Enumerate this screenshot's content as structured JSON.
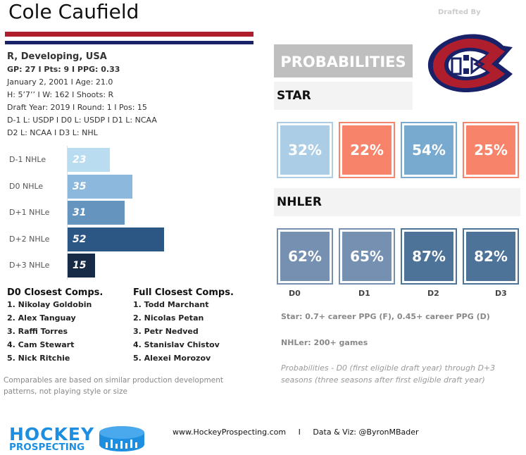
{
  "player": {
    "name": "Cole Caufield",
    "line0": "R, Developing, USA",
    "line1": "GP: 27 I Pts: 9 I PPG: 0.33",
    "line2": " January 2, 2001 I Age: 21.0",
    "line3": "H: 5’7’’ I W: 162 I Shoots: R",
    "line4": "Draft Year: 2019 I Round: 1 I Pos: 15",
    "line5": "D-1 L: USDP I D0 L: USDP I D1 L: NCAA",
    "line6": "D2 L: NCAA I D3 L: NHL"
  },
  "colors": {
    "red": "#af1e2d",
    "navy": "#192168"
  },
  "nhle": [
    {
      "label": "D-1 NHLe",
      "value": 23,
      "color": "#b9dcf0"
    },
    {
      "label": "D0 NHLe",
      "value": 35,
      "color": "#8bb8dc"
    },
    {
      "label": "D+1 NHLe",
      "value": 31,
      "color": "#6595bf"
    },
    {
      "label": "D+2 NHLe",
      "value": 52,
      "color": "#2c5784"
    },
    {
      "label": "D+3 NHLe",
      "value": 15,
      "color": "#172b47"
    }
  ],
  "comps": {
    "d0_title": "D0 Closest Comps.",
    "d0": [
      "1. Nikolay Goldobin",
      "2. Alex Tanguay",
      "3. Raffi Torres",
      "4. Cam Stewart",
      "5. Nick Ritchie"
    ],
    "full_title": "Full Closest Comps.",
    "full": [
      "1. Todd Marchant",
      "2. Nicolas Petan",
      "3. Petr Nedved",
      "4. Stanislav Chistov",
      "5. Alexei Morozov"
    ],
    "note": "Comparables are based on similar production development patterns, not playing style or size"
  },
  "drafted_by": "Drafted By",
  "team_logo": "montreal-canadiens-logo",
  "probabilities": {
    "title": "PROBABILITIES",
    "star_title": "STAR",
    "star": [
      {
        "value": "32%",
        "color": "#abcde6",
        "border": "#abcde6"
      },
      {
        "value": "22%",
        "color": "#f7836b",
        "border": "#f7836b"
      },
      {
        "value": "54%",
        "color": "#78a9cf",
        "border": "#78a9cf"
      },
      {
        "value": "25%",
        "color": "#f7836b",
        "border": "#f7836b"
      }
    ],
    "nhler_title": "NHLER",
    "nhler": [
      {
        "value": "62%",
        "color": "#7590b0"
      },
      {
        "value": "65%",
        "color": "#7590b0"
      },
      {
        "value": "87%",
        "color": "#4d7399"
      },
      {
        "value": "82%",
        "color": "#4d7399"
      }
    ],
    "labels": [
      "D0",
      "D1",
      "D2",
      "D3"
    ],
    "star_def": "Star: 0.7+ career PPG (F), 0.45+ career PPG (D)",
    "nhler_def": "NHLer: 200+ games",
    "note": "Probabilities - D0 (first eligible draft year) through D+3 seasons (three seasons after first eligible draft year)"
  },
  "footer": {
    "logo_top": "HOCKEY",
    "logo_bottom": "PROSPECTING",
    "site": "www.HockeyProspecting.com",
    "sep": "I",
    "credit": "Data & Viz: @ByronMBader"
  }
}
